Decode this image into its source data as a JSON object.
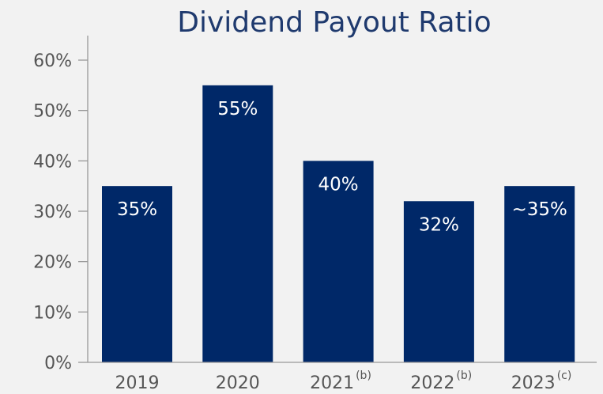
{
  "chart_data": {
    "type": "bar",
    "title": "Dividend Payout Ratio",
    "xlabel": "",
    "ylabel": "",
    "ylim": [
      0,
      60
    ],
    "yticks": [
      "0%",
      "10%",
      "20%",
      "30%",
      "40%",
      "50%",
      "60%"
    ],
    "categories": [
      {
        "year": "2019",
        "note": ""
      },
      {
        "year": "2020",
        "note": ""
      },
      {
        "year": "2021",
        "note": "(b)"
      },
      {
        "year": "2022",
        "note": "(b)"
      },
      {
        "year": "2023",
        "note": "(c)"
      }
    ],
    "values": [
      35,
      55,
      40,
      32,
      35
    ],
    "data_labels": [
      "35%",
      "55%",
      "40%",
      "32%",
      "~35%"
    ],
    "grid": false,
    "legend": "none",
    "colors": {
      "bar": "#002868",
      "bar_label": "#ffffff",
      "title": "#1f3a6e",
      "axis_text": "#555555",
      "axis_line": "#999999"
    }
  }
}
